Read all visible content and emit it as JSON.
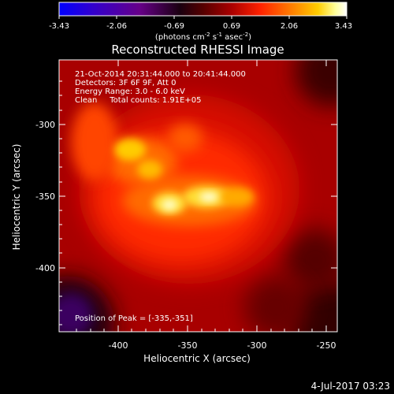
{
  "colorbar": {
    "ticks": [
      "-3.43",
      "-2.06",
      "-0.69",
      "0.69",
      "2.06",
      "3.43"
    ],
    "units_main": "(photons cm",
    "units_exp1": "-2",
    "units_mid": " s",
    "units_exp2": "-1",
    "units_tail": " asec",
    "units_exp3": "-2",
    "units_close": ")",
    "colors": [
      "#0000ff",
      "#3300cc",
      "#660088",
      "#1a0010",
      "#550000",
      "#aa0000",
      "#ff2200",
      "#ff7700",
      "#ffcc00",
      "#ffff99",
      "#ffffff"
    ]
  },
  "title": "Reconstructed RHESSI Image",
  "annotations": {
    "line1": "21-Oct-2014 20:31:44.000 to 20:41:44.000",
    "line2": "Detectors: 3F 6F 9F, Att 0",
    "line3": "Energy Range: 3.0 - 6.0 keV",
    "line4": "Clean     Total counts: 1.91E+05",
    "peak": "Position of Peak = [-335,-351]"
  },
  "axes": {
    "xlabel": "Heliocentric X (arcsec)",
    "ylabel": "Heliocentric Y (arcsec)",
    "xticks": [
      "-400",
      "-350",
      "-300",
      "-250"
    ],
    "yticks": [
      "-300",
      "-350",
      "-400"
    ],
    "xlim": [
      -440,
      -250
    ],
    "ylim": [
      -450,
      -265
    ]
  },
  "footer": {
    "date": "4-Jul-2017 03:23"
  }
}
